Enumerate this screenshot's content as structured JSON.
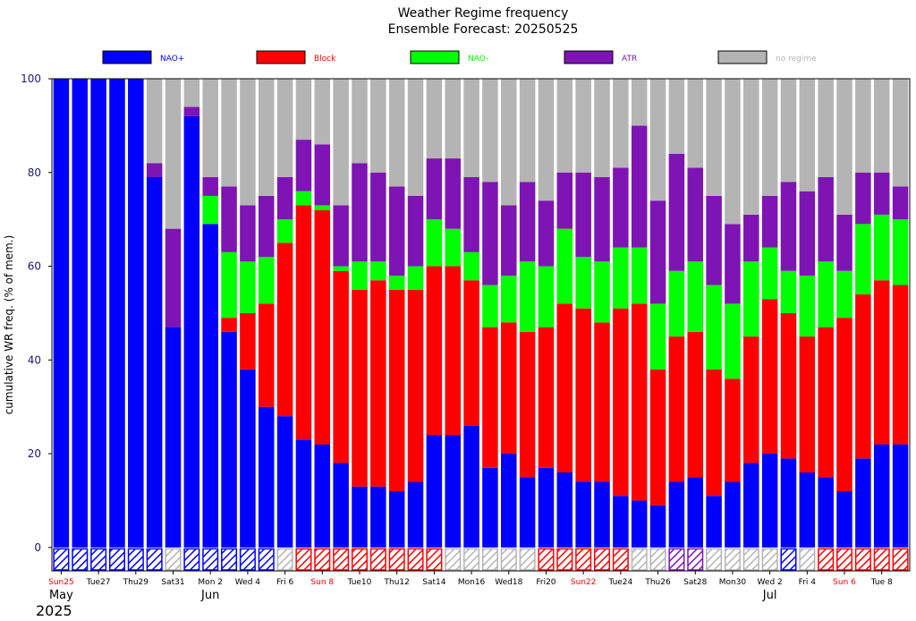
{
  "chart_data": {
    "type": "bar",
    "title": "Weather Regime frequency",
    "subtitle": "Ensemble Forecast: 20250525",
    "ylabel": "cumulative WR freq. (% of mem.)",
    "ylim": [
      -5,
      100
    ],
    "yticks": [
      0,
      20,
      40,
      60,
      80,
      100
    ],
    "legend": {
      "position": "top",
      "entries": [
        {
          "key": "nao_plus",
          "name": "NAO+",
          "color": "#0000ff"
        },
        {
          "key": "block",
          "name": "Block",
          "color": "#ff0000"
        },
        {
          "key": "nao_minus",
          "name": "NAO-",
          "color": "#00ff00"
        },
        {
          "key": "atr",
          "name": "ATR",
          "color": "#7f14b4"
        },
        {
          "key": "no_regime",
          "name": "no regime",
          "color": "#b4b4b4"
        }
      ]
    },
    "x_labels": [
      {
        "i": 0,
        "text": "Sun25",
        "color": "#ff0000"
      },
      {
        "i": 2,
        "text": "Tue27",
        "color": "#000000"
      },
      {
        "i": 4,
        "text": "Thu29",
        "color": "#000000"
      },
      {
        "i": 6,
        "text": "Sat31",
        "color": "#000000"
      },
      {
        "i": 8,
        "text": "Mon 2",
        "color": "#000000"
      },
      {
        "i": 10,
        "text": "Wed 4",
        "color": "#000000"
      },
      {
        "i": 12,
        "text": "Fri 6",
        "color": "#000000"
      },
      {
        "i": 14,
        "text": "Sun 8",
        "color": "#ff0000"
      },
      {
        "i": 16,
        "text": "Tue10",
        "color": "#000000"
      },
      {
        "i": 18,
        "text": "Thu12",
        "color": "#000000"
      },
      {
        "i": 20,
        "text": "Sat14",
        "color": "#000000"
      },
      {
        "i": 22,
        "text": "Mon16",
        "color": "#000000"
      },
      {
        "i": 24,
        "text": "Wed18",
        "color": "#000000"
      },
      {
        "i": 26,
        "text": "Fri20",
        "color": "#000000"
      },
      {
        "i": 28,
        "text": "Sun22",
        "color": "#ff0000"
      },
      {
        "i": 30,
        "text": "Tue24",
        "color": "#000000"
      },
      {
        "i": 32,
        "text": "Thu26",
        "color": "#000000"
      },
      {
        "i": 34,
        "text": "Sat28",
        "color": "#000000"
      },
      {
        "i": 36,
        "text": "Mon30",
        "color": "#000000"
      },
      {
        "i": 38,
        "text": "Wed 2",
        "color": "#000000"
      },
      {
        "i": 40,
        "text": "Fri 4",
        "color": "#000000"
      },
      {
        "i": 42,
        "text": "Sun 6",
        "color": "#ff0000"
      },
      {
        "i": 44,
        "text": "Tue 8",
        "color": "#000000"
      }
    ],
    "month_labels": [
      {
        "i": 0,
        "text": "May"
      },
      {
        "i": 8,
        "text": "Jun"
      },
      {
        "i": 38,
        "text": "Jul"
      }
    ],
    "year_label": "2025",
    "days": [
      {
        "nao_plus": 100,
        "block": 0,
        "nao_minus": 0,
        "atr": 0,
        "dominant": "nao_plus"
      },
      {
        "nao_plus": 100,
        "block": 0,
        "nao_minus": 0,
        "atr": 0,
        "dominant": "nao_plus"
      },
      {
        "nao_plus": 100,
        "block": 0,
        "nao_minus": 0,
        "atr": 0,
        "dominant": "nao_plus"
      },
      {
        "nao_plus": 100,
        "block": 0,
        "nao_minus": 0,
        "atr": 0,
        "dominant": "nao_plus"
      },
      {
        "nao_plus": 100,
        "block": 0,
        "nao_minus": 0,
        "atr": 0,
        "dominant": "nao_plus"
      },
      {
        "nao_plus": 79,
        "block": 0,
        "nao_minus": 0,
        "atr": 3,
        "dominant": "nao_plus"
      },
      {
        "nao_plus": 47,
        "block": 0,
        "nao_minus": 0,
        "atr": 21,
        "dominant": "no_regime"
      },
      {
        "nao_plus": 92,
        "block": 0,
        "nao_minus": 0,
        "atr": 2,
        "dominant": "nao_plus"
      },
      {
        "nao_plus": 69,
        "block": 0,
        "nao_minus": 6,
        "atr": 4,
        "dominant": "nao_plus"
      },
      {
        "nao_plus": 46,
        "block": 3,
        "nao_minus": 14,
        "atr": 14,
        "dominant": "nao_plus"
      },
      {
        "nao_plus": 38,
        "block": 12,
        "nao_minus": 11,
        "atr": 12,
        "dominant": "nao_plus"
      },
      {
        "nao_plus": 30,
        "block": 22,
        "nao_minus": 10,
        "atr": 13,
        "dominant": "nao_plus"
      },
      {
        "nao_plus": 28,
        "block": 37,
        "nao_minus": 5,
        "atr": 9,
        "dominant": "no_regime"
      },
      {
        "nao_plus": 23,
        "block": 50,
        "nao_minus": 3,
        "atr": 11,
        "dominant": "block"
      },
      {
        "nao_plus": 22,
        "block": 50,
        "nao_minus": 1,
        "atr": 13,
        "dominant": "block"
      },
      {
        "nao_plus": 18,
        "block": 41,
        "nao_minus": 1,
        "atr": 13,
        "dominant": "block"
      },
      {
        "nao_plus": 13,
        "block": 42,
        "nao_minus": 6,
        "atr": 21,
        "dominant": "block"
      },
      {
        "nao_plus": 13,
        "block": 44,
        "nao_minus": 4,
        "atr": 19,
        "dominant": "block"
      },
      {
        "nao_plus": 12,
        "block": 43,
        "nao_minus": 3,
        "atr": 19,
        "dominant": "block"
      },
      {
        "nao_plus": 14,
        "block": 41,
        "nao_minus": 5,
        "atr": 15,
        "dominant": "block"
      },
      {
        "nao_plus": 24,
        "block": 36,
        "nao_minus": 10,
        "atr": 13,
        "dominant": "block"
      },
      {
        "nao_plus": 24,
        "block": 36,
        "nao_minus": 8,
        "atr": 15,
        "dominant": "no_regime"
      },
      {
        "nao_plus": 26,
        "block": 31,
        "nao_minus": 6,
        "atr": 16,
        "dominant": "no_regime"
      },
      {
        "nao_plus": 17,
        "block": 30,
        "nao_minus": 9,
        "atr": 22,
        "dominant": "no_regime"
      },
      {
        "nao_plus": 20,
        "block": 28,
        "nao_minus": 10,
        "atr": 15,
        "dominant": "no_regime"
      },
      {
        "nao_plus": 15,
        "block": 31,
        "nao_minus": 15,
        "atr": 17,
        "dominant": "no_regime"
      },
      {
        "nao_plus": 17,
        "block": 30,
        "nao_minus": 13,
        "atr": 14,
        "dominant": "block"
      },
      {
        "nao_plus": 16,
        "block": 36,
        "nao_minus": 16,
        "atr": 12,
        "dominant": "block"
      },
      {
        "nao_plus": 14,
        "block": 37,
        "nao_minus": 11,
        "atr": 18,
        "dominant": "block"
      },
      {
        "nao_plus": 14,
        "block": 34,
        "nao_minus": 13,
        "atr": 18,
        "dominant": "block"
      },
      {
        "nao_plus": 11,
        "block": 40,
        "nao_minus": 13,
        "atr": 17,
        "dominant": "block"
      },
      {
        "nao_plus": 10,
        "block": 42,
        "nao_minus": 12,
        "atr": 26,
        "dominant": "no_regime"
      },
      {
        "nao_plus": 9,
        "block": 29,
        "nao_minus": 14,
        "atr": 22,
        "dominant": "no_regime"
      },
      {
        "nao_plus": 14,
        "block": 31,
        "nao_minus": 14,
        "atr": 25,
        "dominant": "atr"
      },
      {
        "nao_plus": 15,
        "block": 31,
        "nao_minus": 15,
        "atr": 20,
        "dominant": "atr"
      },
      {
        "nao_plus": 11,
        "block": 27,
        "nao_minus": 18,
        "atr": 19,
        "dominant": "no_regime"
      },
      {
        "nao_plus": 14,
        "block": 22,
        "nao_minus": 16,
        "atr": 17,
        "dominant": "no_regime"
      },
      {
        "nao_plus": 18,
        "block": 27,
        "nao_minus": 16,
        "atr": 10,
        "dominant": "no_regime"
      },
      {
        "nao_plus": 20,
        "block": 33,
        "nao_minus": 11,
        "atr": 11,
        "dominant": "no_regime"
      },
      {
        "nao_plus": 19,
        "block": 31,
        "nao_minus": 9,
        "atr": 19,
        "dominant": "nao_plus"
      },
      {
        "nao_plus": 16,
        "block": 29,
        "nao_minus": 13,
        "atr": 18,
        "dominant": "no_regime"
      },
      {
        "nao_plus": 15,
        "block": 32,
        "nao_minus": 14,
        "atr": 18,
        "dominant": "block"
      },
      {
        "nao_plus": 12,
        "block": 37,
        "nao_minus": 10,
        "atr": 12,
        "dominant": "block"
      },
      {
        "nao_plus": 19,
        "block": 35,
        "nao_minus": 15,
        "atr": 11,
        "dominant": "block"
      },
      {
        "nao_plus": 22,
        "block": 35,
        "nao_minus": 14,
        "atr": 9,
        "dominant": "block"
      },
      {
        "nao_plus": 22,
        "block": 34,
        "nao_minus": 14,
        "atr": 7,
        "dominant": "block"
      }
    ]
  }
}
